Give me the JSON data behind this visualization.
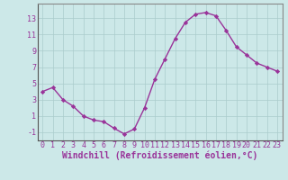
{
  "x": [
    0,
    1,
    2,
    3,
    4,
    5,
    6,
    7,
    8,
    9,
    10,
    11,
    12,
    13,
    14,
    15,
    16,
    17,
    18,
    19,
    20,
    21,
    22,
    23
  ],
  "y": [
    4.0,
    4.5,
    3.0,
    2.2,
    1.0,
    0.5,
    0.3,
    -0.5,
    -1.2,
    -0.6,
    2.0,
    5.5,
    8.0,
    10.5,
    12.5,
    13.5,
    13.7,
    13.3,
    11.5,
    9.5,
    8.5,
    7.5,
    7.0,
    6.5
  ],
  "line_color": "#993399",
  "marker": "D",
  "markersize": 2.2,
  "linewidth": 1.0,
  "bg_color": "#cce8e8",
  "grid_color": "#aacccc",
  "xlabel": "Windchill (Refroidissement éolien,°C)",
  "xlabel_fontsize": 7,
  "xlabel_color": "#993399",
  "xlabel_fontweight": "bold",
  "yticks": [
    -1,
    1,
    3,
    5,
    7,
    9,
    11,
    13
  ],
  "ytick_labels": [
    "-1",
    "1",
    "3",
    "5",
    "7",
    "9",
    "11",
    "13"
  ],
  "xtick_labels": [
    "0",
    "1",
    "2",
    "3",
    "4",
    "5",
    "6",
    "7",
    "8",
    "9",
    "10",
    "11",
    "12",
    "13",
    "14",
    "15",
    "16",
    "17",
    "18",
    "19",
    "20",
    "21",
    "22",
    "23"
  ],
  "ylim": [
    -2.0,
    14.8
  ],
  "xlim": [
    -0.5,
    23.5
  ],
  "tick_fontsize": 6,
  "tick_color": "#993399",
  "spine_color": "#888888",
  "grid_linewidth": 0.5
}
